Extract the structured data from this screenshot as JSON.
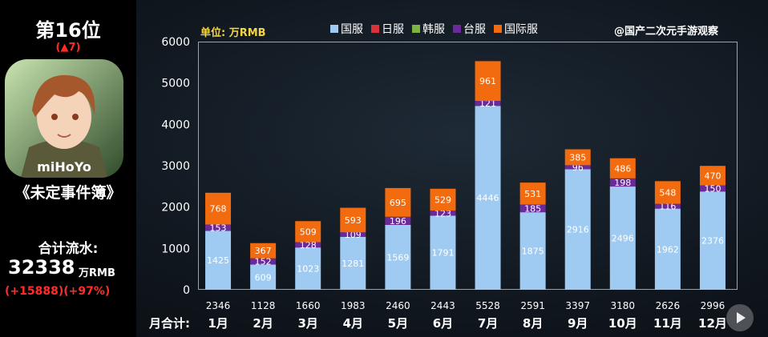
{
  "title_partial": "",
  "rank": "第16位",
  "rank_change": "(▲7)",
  "app_logo_text": "miHoYo",
  "game_name": "《未定事件簿》",
  "total_label": "合计流水:",
  "total_value": "32338",
  "total_unit": "万RMB",
  "total_change": "(+15888)(+97%)",
  "watermark": "@国产二次元手游观察",
  "colors": {
    "国服": "#9fcbf2",
    "日服": "#d8323a",
    "韩服": "#7cb342",
    "台服": "#6a2a9a",
    "国际服": "#f26b0f"
  },
  "chart_data": {
    "type": "bar",
    "stacked": true,
    "unit_label": "单位: 万RMB",
    "categories": [
      "1月",
      "2月",
      "3月",
      "4月",
      "5月",
      "6月",
      "7月",
      "8月",
      "9月",
      "10月",
      "11月",
      "12月"
    ],
    "series": [
      {
        "name": "国服",
        "values": [
          1425,
          609,
          1023,
          1281,
          1569,
          1791,
          4446,
          1875,
          2916,
          2496,
          1962,
          2376
        ]
      },
      {
        "name": "日服",
        "values": [
          0,
          0,
          0,
          0,
          0,
          0,
          0,
          0,
          0,
          0,
          0,
          0
        ]
      },
      {
        "name": "韩服",
        "values": [
          0,
          0,
          0,
          0,
          0,
          0,
          0,
          0,
          0,
          0,
          0,
          0
        ]
      },
      {
        "name": "台服",
        "values": [
          153,
          152,
          128,
          109,
          196,
          123,
          121,
          185,
          96,
          198,
          116,
          150
        ]
      },
      {
        "name": "国际服",
        "values": [
          768,
          367,
          509,
          593,
          695,
          529,
          961,
          531,
          385,
          486,
          548,
          470
        ]
      }
    ],
    "monthly_total_label": "月合计:",
    "monthly_totals": [
      2346,
      1128,
      1660,
      1983,
      2460,
      2443,
      5528,
      2591,
      3397,
      3180,
      2626,
      2996
    ],
    "ylim": [
      0,
      6000
    ],
    "yticks": [
      0,
      1000,
      2000,
      3000,
      4000,
      5000,
      6000
    ],
    "legend_position": "top"
  }
}
